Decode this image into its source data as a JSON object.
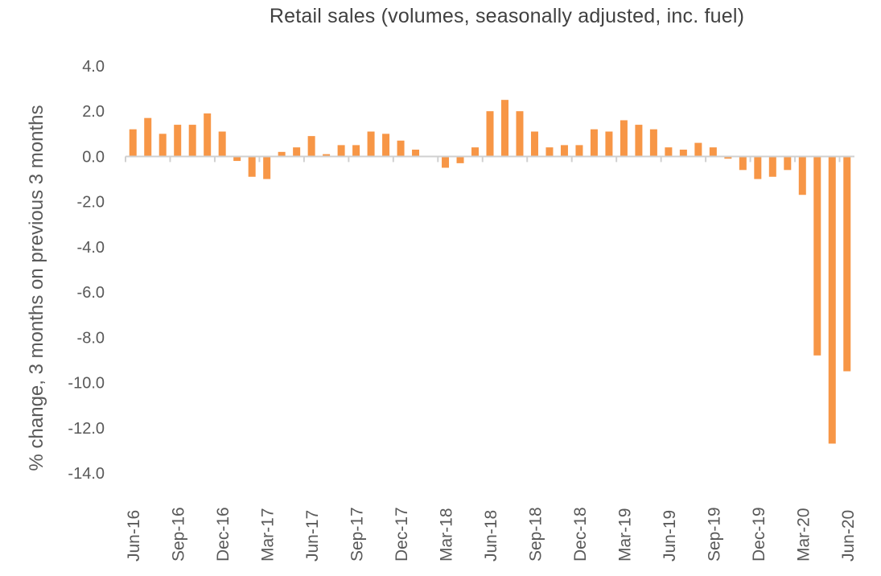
{
  "chart_data": {
    "type": "bar",
    "title": "Retail sales (volumes, seasonally adjusted, inc. fuel)",
    "xlabel": "",
    "ylabel": "% change, 3 months on previous 3 months",
    "ylim": [
      -14,
      4
    ],
    "yticks": [
      "4.0",
      "2.0",
      "0.0",
      "-2.0",
      "-4.0",
      "-6.0",
      "-8.0",
      "-10.0",
      "-12.0",
      "-14.0"
    ],
    "bar_color": "#F79646",
    "grid": false,
    "categories": [
      "Jun-16",
      "Jul-16",
      "Aug-16",
      "Sep-16",
      "Oct-16",
      "Nov-16",
      "Dec-16",
      "Jan-17",
      "Feb-17",
      "Mar-17",
      "Apr-17",
      "May-17",
      "Jun-17",
      "Jul-17",
      "Aug-17",
      "Sep-17",
      "Oct-17",
      "Nov-17",
      "Dec-17",
      "Jan-18",
      "Feb-18",
      "Mar-18",
      "Apr-18",
      "May-18",
      "Jun-18",
      "Jul-18",
      "Aug-18",
      "Sep-18",
      "Oct-18",
      "Nov-18",
      "Dec-18",
      "Jan-19",
      "Feb-19",
      "Mar-19",
      "Apr-19",
      "May-19",
      "Jun-19",
      "Jul-19",
      "Aug-19",
      "Sep-19",
      "Oct-19",
      "Nov-19",
      "Dec-19",
      "Jan-20",
      "Feb-20",
      "Mar-20",
      "Apr-20",
      "May-20",
      "Jun-20"
    ],
    "x_tick_labels": [
      "Jun-16",
      "Sep-16",
      "Dec-16",
      "Mar-17",
      "Jun-17",
      "Sep-17",
      "Dec-17",
      "Mar-18",
      "Jun-18",
      "Sep-18",
      "Dec-18",
      "Mar-19",
      "Jun-19",
      "Sep-19",
      "Dec-19",
      "Mar-20",
      "Jun-20"
    ],
    "series": [
      {
        "values": [
          1.2,
          1.7,
          1.0,
          1.4,
          1.4,
          1.9,
          1.1,
          -0.2,
          -0.9,
          -1.0,
          0.2,
          0.4,
          0.9,
          0.1,
          0.5,
          0.5,
          1.1,
          1.0,
          0.7,
          0.3,
          0.0,
          -0.5,
          -0.3,
          0.4,
          2.0,
          2.5,
          2.0,
          1.1,
          0.4,
          0.5,
          0.5,
          1.2,
          1.1,
          1.6,
          1.4,
          1.2,
          0.4,
          0.3,
          0.6,
          0.4,
          -0.1,
          -0.6,
          -1.0,
          -0.9,
          -0.6,
          -1.7,
          -8.8,
          -12.7,
          -9.5
        ]
      }
    ]
  }
}
